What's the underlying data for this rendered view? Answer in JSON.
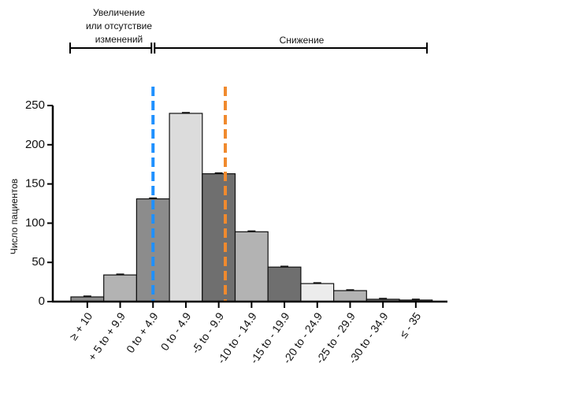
{
  "chart_data": {
    "type": "bar",
    "categories": [
      "≥ + 10",
      "+ 5 to + 9.9",
      "0 to + 4.9",
      "0 to - 4.9",
      "-5 to - 9.9",
      "-10 to - 14.9",
      "-15 to - 19.9",
      "-20 to - 24.9",
      "-25 to - 29.9",
      "-30 to - 34.9",
      "≤ - 35"
    ],
    "values": [
      6,
      34,
      131,
      240,
      163,
      89,
      44,
      23,
      14,
      3,
      2
    ],
    "bar_colors": [
      "#8c8c8c",
      "#b3b3b3",
      "#8c8c8c",
      "#dcdcdc",
      "#6f6f6f",
      "#b3b3b3",
      "#6f6f6f",
      "#ececec",
      "#b3b3b3",
      "#6f6f6f",
      "#6f6f6f"
    ],
    "ylabel": "Число пациентов",
    "xlabel": "",
    "ylim": [
      0,
      250
    ],
    "yticks": [
      0,
      50,
      100,
      150,
      200,
      250
    ],
    "grid": false,
    "reference_lines": [
      {
        "position": 2.5,
        "color": "#1e90ff"
      },
      {
        "position": 4.7,
        "color": "#f08a2e"
      }
    ],
    "brackets": [
      {
        "label_lines": [
          "Увеличение",
          "или отсутствие",
          "изменений"
        ],
        "from": 0,
        "to": 2.5
      },
      {
        "label_lines": [
          "Снижение"
        ],
        "from": 2.5,
        "to": 10.5
      }
    ]
  }
}
